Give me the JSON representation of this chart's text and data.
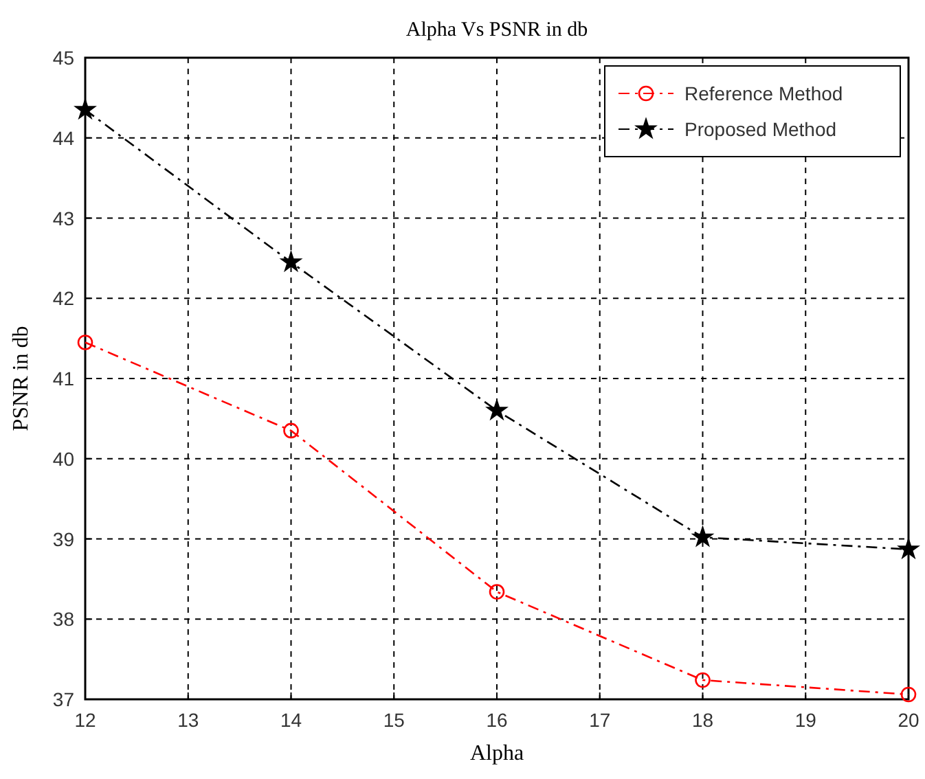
{
  "chart_data": {
    "type": "line",
    "title": "Alpha Vs PSNR in db",
    "xlabel": "Alpha",
    "ylabel": "PSNR in db",
    "x": [
      12,
      14,
      16,
      18,
      20
    ],
    "series": [
      {
        "name": "Reference Method",
        "color": "#ff0000",
        "marker": "circle",
        "values": [
          41.45,
          40.35,
          38.34,
          37.24,
          37.06
        ]
      },
      {
        "name": "Proposed Method",
        "color": "#000000",
        "marker": "star",
        "values": [
          44.35,
          42.45,
          40.6,
          39.02,
          38.87
        ]
      }
    ],
    "xlim": [
      12,
      20
    ],
    "xticks": [
      12,
      13,
      14,
      15,
      16,
      17,
      18,
      19,
      20
    ],
    "ylim": [
      37,
      45
    ],
    "yticks": [
      37,
      38,
      39,
      40,
      41,
      42,
      43,
      44,
      45
    ],
    "grid": true,
    "legend": "top right",
    "line_style": "dashed"
  }
}
